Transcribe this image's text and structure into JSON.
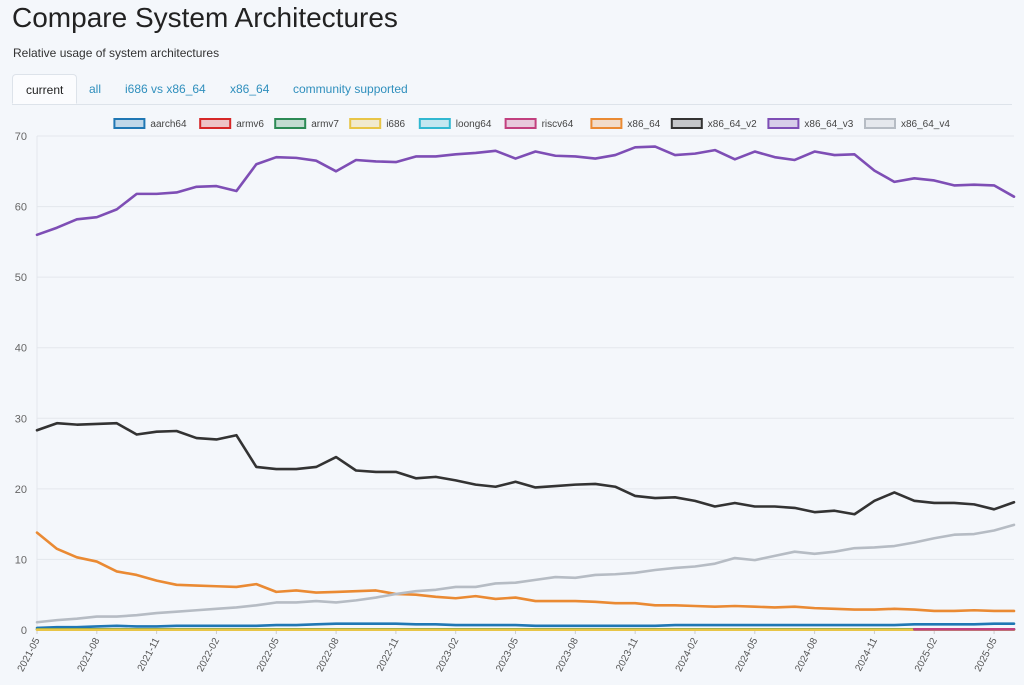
{
  "page": {
    "title": "Compare System Architectures",
    "subtitle": "Relative usage of system architectures"
  },
  "tabs": [
    {
      "label": "current",
      "active": true
    },
    {
      "label": "all",
      "active": false
    },
    {
      "label": "i686 vs x86_64",
      "active": false
    },
    {
      "label": "x86_64",
      "active": false
    },
    {
      "label": "community supported",
      "active": false
    }
  ],
  "chart_data": {
    "type": "line",
    "title": "",
    "xlabel": "",
    "ylabel": "",
    "ylim": [
      0,
      70
    ],
    "yticks": [
      0,
      10,
      20,
      30,
      40,
      50,
      60,
      70
    ],
    "grid": true,
    "legend": "top",
    "x": [
      "2021-05",
      "2021-06",
      "2021-07",
      "2021-08",
      "2021-09",
      "2021-10",
      "2021-11",
      "2021-12",
      "2022-01",
      "2022-02",
      "2022-03",
      "2022-04",
      "2022-05",
      "2022-06",
      "2022-07",
      "2022-08",
      "2022-09",
      "2022-10",
      "2022-11",
      "2022-12",
      "2023-01",
      "2023-02",
      "2023-03",
      "2023-04",
      "2023-05",
      "2023-06",
      "2023-07",
      "2023-08",
      "2023-09",
      "2023-10",
      "2023-11",
      "2023-12",
      "2024-01",
      "2024-02",
      "2024-03",
      "2024-04",
      "2024-05",
      "2024-06",
      "2024-07",
      "2024-08",
      "2024-09",
      "2024-10",
      "2024-11",
      "2024-12",
      "2025-01",
      "2025-02",
      "2025-03",
      "2025-04",
      "2025-05",
      "2025-06"
    ],
    "xtick_labels": [
      "2021-05",
      "2021-08",
      "2021-11",
      "2022-02",
      "2022-05",
      "2022-08",
      "2022-11",
      "2023-02",
      "2023-05",
      "2023-08",
      "2023-11",
      "2024-02",
      "2024-05",
      "2024-08",
      "2024-11",
      "2025-02",
      "2025-05"
    ],
    "series": [
      {
        "name": "aarch64",
        "color": "#1f77b4",
        "values": [
          0.3,
          0.4,
          0.4,
          0.5,
          0.6,
          0.5,
          0.5,
          0.6,
          0.6,
          0.6,
          0.6,
          0.6,
          0.7,
          0.7,
          0.8,
          0.9,
          0.9,
          0.9,
          0.9,
          0.8,
          0.8,
          0.7,
          0.7,
          0.7,
          0.7,
          0.6,
          0.6,
          0.6,
          0.6,
          0.6,
          0.6,
          0.6,
          0.7,
          0.7,
          0.7,
          0.7,
          0.7,
          0.7,
          0.7,
          0.7,
          0.7,
          0.7,
          0.7,
          0.7,
          0.8,
          0.8,
          0.8,
          0.8,
          0.9,
          0.9
        ]
      },
      {
        "name": "armv6",
        "color": "#d62728",
        "values": [
          null,
          null,
          null,
          null,
          null,
          null,
          null,
          null,
          null,
          null,
          null,
          null,
          null,
          null,
          null,
          null,
          null,
          null,
          null,
          null,
          null,
          null,
          null,
          null,
          null,
          null,
          null,
          null,
          null,
          null,
          null,
          null,
          null,
          null,
          null,
          null,
          null,
          null,
          null,
          null,
          null,
          null,
          null,
          null,
          0.1,
          0.1,
          0.1,
          0.1,
          0.1,
          0.1
        ]
      },
      {
        "name": "armv7",
        "color": "#2c8a55",
        "values": [
          0.1,
          0.1,
          0.1,
          0.1,
          0.1,
          0.1,
          0.1,
          0.1,
          0.1,
          0.1,
          0.1,
          0.1,
          0.1,
          0.1,
          0.1,
          0.1,
          0.1,
          0.1,
          0.1,
          0.1,
          0.1,
          0.1,
          0.1,
          0.1,
          0.1,
          0.1,
          0.1,
          0.1,
          0.1,
          0.1,
          0.1,
          0.1,
          0.1,
          0.1,
          0.1,
          0.1,
          0.1,
          0.1,
          0.1,
          0.1,
          0.1,
          0.1,
          0.1,
          0.1,
          0.1,
          0.1,
          0.1,
          0.1,
          0.1,
          0.1
        ]
      },
      {
        "name": "i686",
        "color": "#e8c547",
        "values": [
          0.05,
          0.05,
          0.05,
          0.05,
          0.05,
          0.05,
          0.05,
          0.05,
          0.05,
          0.05,
          0.05,
          0.05,
          0.05,
          0.05,
          0.05,
          0.05,
          0.05,
          0.05,
          0.05,
          0.05,
          0.05,
          0.05,
          0.05,
          0.05,
          0.05,
          0.05,
          0.05,
          0.05,
          0.05,
          0.05,
          0.05,
          0.05,
          0.05,
          0.05,
          0.05,
          0.05,
          0.05,
          0.05,
          0.05,
          0.05,
          0.05,
          0.05,
          0.05,
          0.05,
          0.05,
          0.05,
          0.05,
          0.05,
          0.05,
          0.05
        ]
      },
      {
        "name": "loong64",
        "color": "#31b8d1",
        "values": [
          null,
          null,
          null,
          null,
          null,
          null,
          null,
          null,
          null,
          null,
          null,
          null,
          null,
          null,
          null,
          null,
          null,
          null,
          null,
          null,
          null,
          null,
          null,
          null,
          null,
          null,
          null,
          null,
          null,
          null,
          null,
          null,
          null,
          null,
          null,
          null,
          null,
          null,
          null,
          null,
          null,
          null,
          null,
          null,
          0.1,
          0.1,
          0.1,
          0.1,
          0.1,
          0.1
        ]
      },
      {
        "name": "riscv64",
        "color": "#c2407f",
        "values": [
          null,
          null,
          null,
          null,
          null,
          null,
          null,
          null,
          null,
          null,
          null,
          null,
          null,
          null,
          null,
          null,
          null,
          null,
          null,
          null,
          null,
          null,
          null,
          null,
          null,
          null,
          null,
          null,
          null,
          null,
          null,
          null,
          null,
          null,
          null,
          null,
          null,
          null,
          null,
          null,
          null,
          null,
          null,
          null,
          0.1,
          0.1,
          0.1,
          0.1,
          0.1,
          0.1
        ]
      },
      {
        "name": "x86_64",
        "color": "#ea8a33",
        "values": [
          13.8,
          11.5,
          10.3,
          9.7,
          8.3,
          7.8,
          7.0,
          6.4,
          6.3,
          6.2,
          6.1,
          6.5,
          5.4,
          5.6,
          5.3,
          5.4,
          5.5,
          5.6,
          5.1,
          5.0,
          4.7,
          4.5,
          4.8,
          4.4,
          4.6,
          4.1,
          4.1,
          4.1,
          4.0,
          3.8,
          3.8,
          3.5,
          3.5,
          3.4,
          3.3,
          3.4,
          3.3,
          3.2,
          3.3,
          3.1,
          3.0,
          2.9,
          2.9,
          3.0,
          2.9,
          2.7,
          2.7,
          2.8,
          2.7,
          2.7
        ]
      },
      {
        "name": "x86_64_v2",
        "color": "#333333",
        "values": [
          28.3,
          29.3,
          29.1,
          29.2,
          29.3,
          27.7,
          28.1,
          28.2,
          27.2,
          27.0,
          27.6,
          23.1,
          22.8,
          22.8,
          23.1,
          24.5,
          22.6,
          22.4,
          22.4,
          21.5,
          21.7,
          21.2,
          20.6,
          20.3,
          21.0,
          20.2,
          20.4,
          20.6,
          20.7,
          20.3,
          19.0,
          18.7,
          18.8,
          18.3,
          17.5,
          18.0,
          17.5,
          17.5,
          17.3,
          16.7,
          16.9,
          16.4,
          18.3,
          19.5,
          18.3,
          18.0,
          18.0,
          17.8,
          17.1,
          18.1
        ]
      },
      {
        "name": "x86_64_v3",
        "color": "#7e4eb5",
        "values": [
          56.0,
          57.0,
          58.2,
          58.5,
          59.6,
          61.8,
          61.8,
          62.0,
          62.8,
          62.9,
          62.2,
          66.0,
          67.0,
          66.9,
          66.5,
          65.0,
          66.6,
          66.4,
          66.3,
          67.1,
          67.1,
          67.4,
          67.6,
          67.9,
          66.8,
          67.8,
          67.2,
          67.1,
          66.8,
          67.3,
          68.4,
          68.5,
          67.3,
          67.5,
          68.0,
          66.7,
          67.8,
          67.0,
          66.6,
          67.8,
          67.3,
          67.4,
          65.1,
          63.5,
          64.0,
          63.7,
          63.0,
          63.1,
          63.0,
          61.4
        ]
      },
      {
        "name": "x86_64_v4",
        "color": "#b6bcc4",
        "values": [
          1.1,
          1.4,
          1.6,
          1.9,
          1.9,
          2.1,
          2.4,
          2.6,
          2.8,
          3.0,
          3.2,
          3.5,
          3.9,
          3.9,
          4.1,
          3.9,
          4.2,
          4.6,
          5.1,
          5.5,
          5.7,
          6.1,
          6.1,
          6.6,
          6.7,
          7.1,
          7.5,
          7.4,
          7.8,
          7.9,
          8.1,
          8.5,
          8.8,
          9.0,
          9.4,
          10.2,
          9.9,
          10.5,
          11.1,
          10.8,
          11.1,
          11.6,
          11.7,
          11.9,
          12.4,
          13.0,
          13.5,
          13.6,
          14.1,
          14.9
        ]
      }
    ]
  }
}
